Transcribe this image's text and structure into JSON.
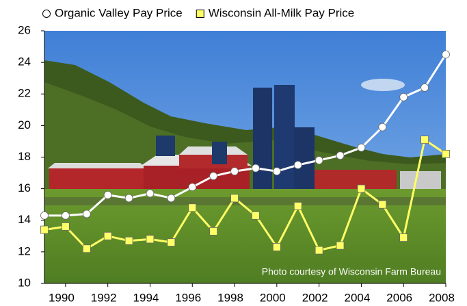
{
  "chart_data": {
    "type": "line",
    "x": [
      1989,
      1990,
      1991,
      1992,
      1993,
      1994,
      1995,
      1996,
      1997,
      1998,
      1999,
      2000,
      2001,
      2002,
      2003,
      2004,
      2005,
      2006,
      2007,
      2008
    ],
    "series": [
      {
        "name": "Organic Valley Pay Price",
        "color": "#ffffff",
        "marker": "circle",
        "values": [
          14.3,
          14.3,
          14.4,
          15.6,
          15.4,
          15.7,
          15.4,
          16.1,
          16.8,
          17.1,
          17.3,
          17.1,
          17.5,
          17.8,
          18.1,
          18.6,
          19.9,
          21.8,
          22.4,
          24.5
        ]
      },
      {
        "name": "Wisconsin All-Milk Pay Price",
        "color": "#ffff66",
        "marker": "square",
        "values": [
          13.4,
          13.6,
          12.2,
          13.0,
          12.7,
          12.8,
          12.6,
          14.8,
          13.3,
          15.4,
          14.3,
          12.3,
          14.9,
          12.1,
          12.4,
          16.0,
          15.0,
          12.9,
          19.1,
          18.2
        ]
      }
    ],
    "xlim": [
      1989,
      2008
    ],
    "xticks": [
      1990,
      1992,
      1994,
      1996,
      1998,
      2000,
      2002,
      2004,
      2006,
      2008
    ],
    "ylim": [
      10,
      26
    ],
    "yticks": [
      10,
      12,
      14,
      16,
      18,
      20,
      22,
      24,
      26
    ],
    "grid": false,
    "legend": "top",
    "annotation": "Photo courtesy of Wisconsin Farm Bureau"
  }
}
